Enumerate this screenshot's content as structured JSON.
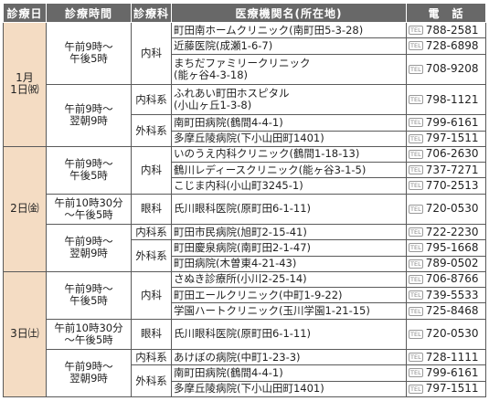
{
  "headers": {
    "day": "診療日",
    "time": "診療時間",
    "dept": "診療科",
    "institution": "医療機関名(所在地)",
    "phone": "電　話"
  },
  "tel_icon": "phone-icon",
  "tel_mark": "TEL",
  "days": {
    "d1_l1": "1月",
    "d1_l2": "1日㈷",
    "d2": "2日㈮",
    "d3": "3日㈯"
  },
  "times": {
    "t_9_5_a": "午前9時～",
    "t_9_5_b": "午後5時",
    "t_9_9_a": "午前9時～",
    "t_9_9_b": "翌朝9時",
    "t_1030_a": "午前10時30分",
    "t_1030_b": "～午後5時"
  },
  "depts": {
    "internal": "内科",
    "internal_sys": "内科系",
    "surgical_sys": "外科系",
    "eye": "眼科"
  },
  "rows": [
    {
      "name": "町田南ホームクリニック(南町田5-3-28)",
      "phone": "788-2581"
    },
    {
      "name": "近藤医院(成瀬1-6-7)",
      "phone": "728-6898"
    },
    {
      "name": "まちだファミリークリニック",
      "name2": "(能ヶ谷4-3-18)",
      "phone": "708-9208"
    },
    {
      "name": "ふれあい町田ホスピタル",
      "name2": "(小山ヶ丘1-3-8)",
      "phone": "798-1121"
    },
    {
      "name": "南町田病院(鶴間4-4-1)",
      "phone": "799-6161"
    },
    {
      "name": "多摩丘陵病院(下小山田町1401)",
      "phone": "797-1511"
    },
    {
      "name": "いのうえ内科クリニック(鶴間1-18-13)",
      "phone": "706-2630"
    },
    {
      "name": "鶴川レディースクリニック(能ヶ谷3-1-5)",
      "phone": "737-7271"
    },
    {
      "name": "こじま内科(小山町3245-1)",
      "phone": "770-2513"
    },
    {
      "name": "氏川眼科医院(原町田6-1-11)",
      "phone": "720-0530"
    },
    {
      "name": "町田市民病院(旭町2-15-41)",
      "phone": "722-2230"
    },
    {
      "name": "町田慶泉病院(南町田2-1-47)",
      "phone": "795-1668"
    },
    {
      "name": "町田病院(木曽東4-21-43)",
      "phone": "789-0502"
    },
    {
      "name": "さぬき診療所(小川2-25-14)",
      "phone": "706-8766"
    },
    {
      "name": "町田エールクリニック(中町1-9-22)",
      "phone": "739-5533"
    },
    {
      "name": "学園ハートクリニック(玉川学園1-21-15)",
      "phone": "725-8468"
    },
    {
      "name": "氏川眼科医院(原町田6-1-11)",
      "phone": "720-0530"
    },
    {
      "name": "あけぼの病院(中町1-23-3)",
      "phone": "728-1111"
    },
    {
      "name": "南町田病院(鶴間4-4-1)",
      "phone": "799-6161"
    },
    {
      "name": "多摩丘陵病院(下小山田町1401)",
      "phone": "797-1511"
    }
  ]
}
